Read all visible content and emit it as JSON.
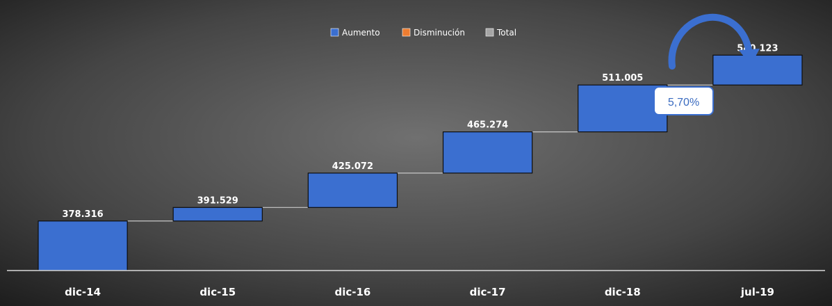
{
  "chart_data": {
    "type": "bar",
    "subtype": "waterfall",
    "categories": [
      "dic-14",
      "dic-15",
      "dic-16",
      "dic-17",
      "dic-18",
      "jul-19"
    ],
    "values": [
      378316,
      391529,
      425072,
      465274,
      511005,
      540123
    ],
    "labels": [
      "378.316",
      "391.529",
      "425.072",
      "465.274",
      "511.005",
      "540.123"
    ],
    "ylim": [
      330000,
      560000
    ],
    "grid": false,
    "legend": {
      "position": "top-center",
      "entries": [
        {
          "label": "Aumento",
          "color": "#3b6fd0"
        },
        {
          "label": "Disminución",
          "color": "#ed7d31"
        },
        {
          "label": "Total",
          "color": "#a5a5a5"
        }
      ]
    },
    "annotation": {
      "text": "5,70%"
    }
  },
  "colors": {
    "increase": "#3b6fd0",
    "connector": "#c8c8c8",
    "background_center": "#6e6e6e",
    "background_edge": "#1e1e1e",
    "text": "#ffffff",
    "callout_text": "#3a6bc0"
  }
}
